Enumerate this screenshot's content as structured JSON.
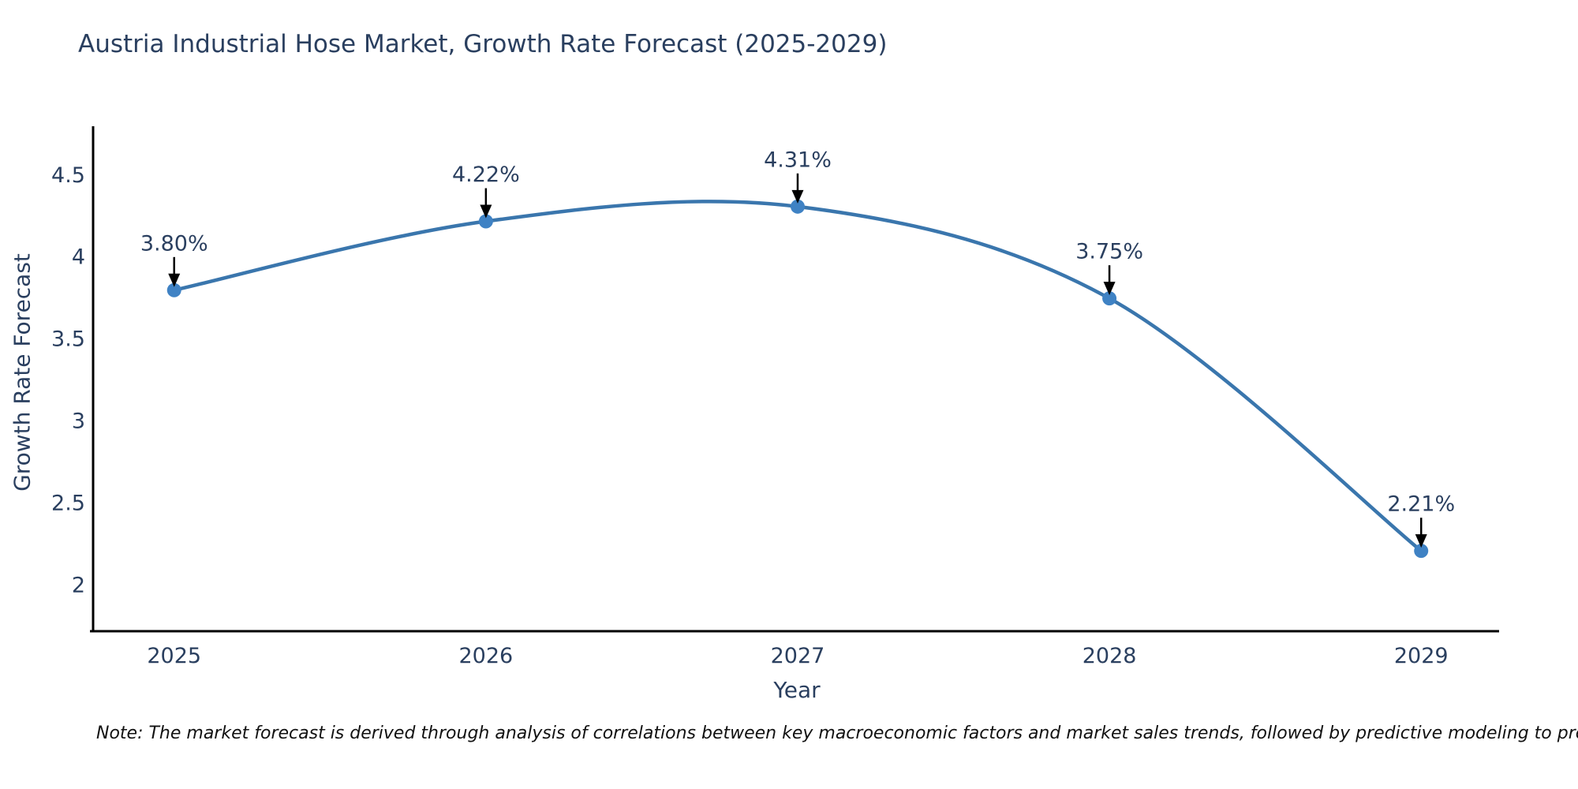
{
  "page": {
    "background": "#ffffff"
  },
  "note": "Note: The market forecast is derived through analysis of correlations between key macroeconomic factors and market sales trends, followed by predictive modeling to project future sales.",
  "chart_data": {
    "type": "line",
    "line_shape": "spline",
    "title": "Austria Industrial Hose Market, Growth Rate Forecast (2025-2029)",
    "xlabel": "Year",
    "ylabel": "Growth Rate Forecast",
    "grid": false,
    "legend": false,
    "x": [
      2025,
      2026,
      2027,
      2028,
      2029
    ],
    "y": [
      3.8,
      4.22,
      4.31,
      3.75,
      2.21
    ],
    "point_labels": [
      "3.80%",
      "4.22%",
      "4.31%",
      "3.75%",
      "2.21%"
    ],
    "x_ticks": [
      {
        "value": 2025,
        "label": "2025"
      },
      {
        "value": 2026,
        "label": "2026"
      },
      {
        "value": 2027,
        "label": "2027"
      },
      {
        "value": 2028,
        "label": "2028"
      },
      {
        "value": 2029,
        "label": "2029"
      }
    ],
    "y_ticks": [
      {
        "value": 2,
        "label": "2"
      },
      {
        "value": 2.5,
        "label": "2.5"
      },
      {
        "value": 3,
        "label": "3"
      },
      {
        "value": 3.5,
        "label": "3.5"
      },
      {
        "value": 4,
        "label": "4"
      },
      {
        "value": 4.5,
        "label": "4.5"
      }
    ],
    "xlim": [
      2024.74,
      2029.25
    ],
    "ylim": [
      1.72,
      4.8
    ],
    "colors": {
      "line": "#3a76ad",
      "marker": "#3f82c4",
      "text": "#2a3f5f",
      "axis": "#000000",
      "annotation": "#2a3f5f",
      "arrow": "#000000"
    }
  }
}
